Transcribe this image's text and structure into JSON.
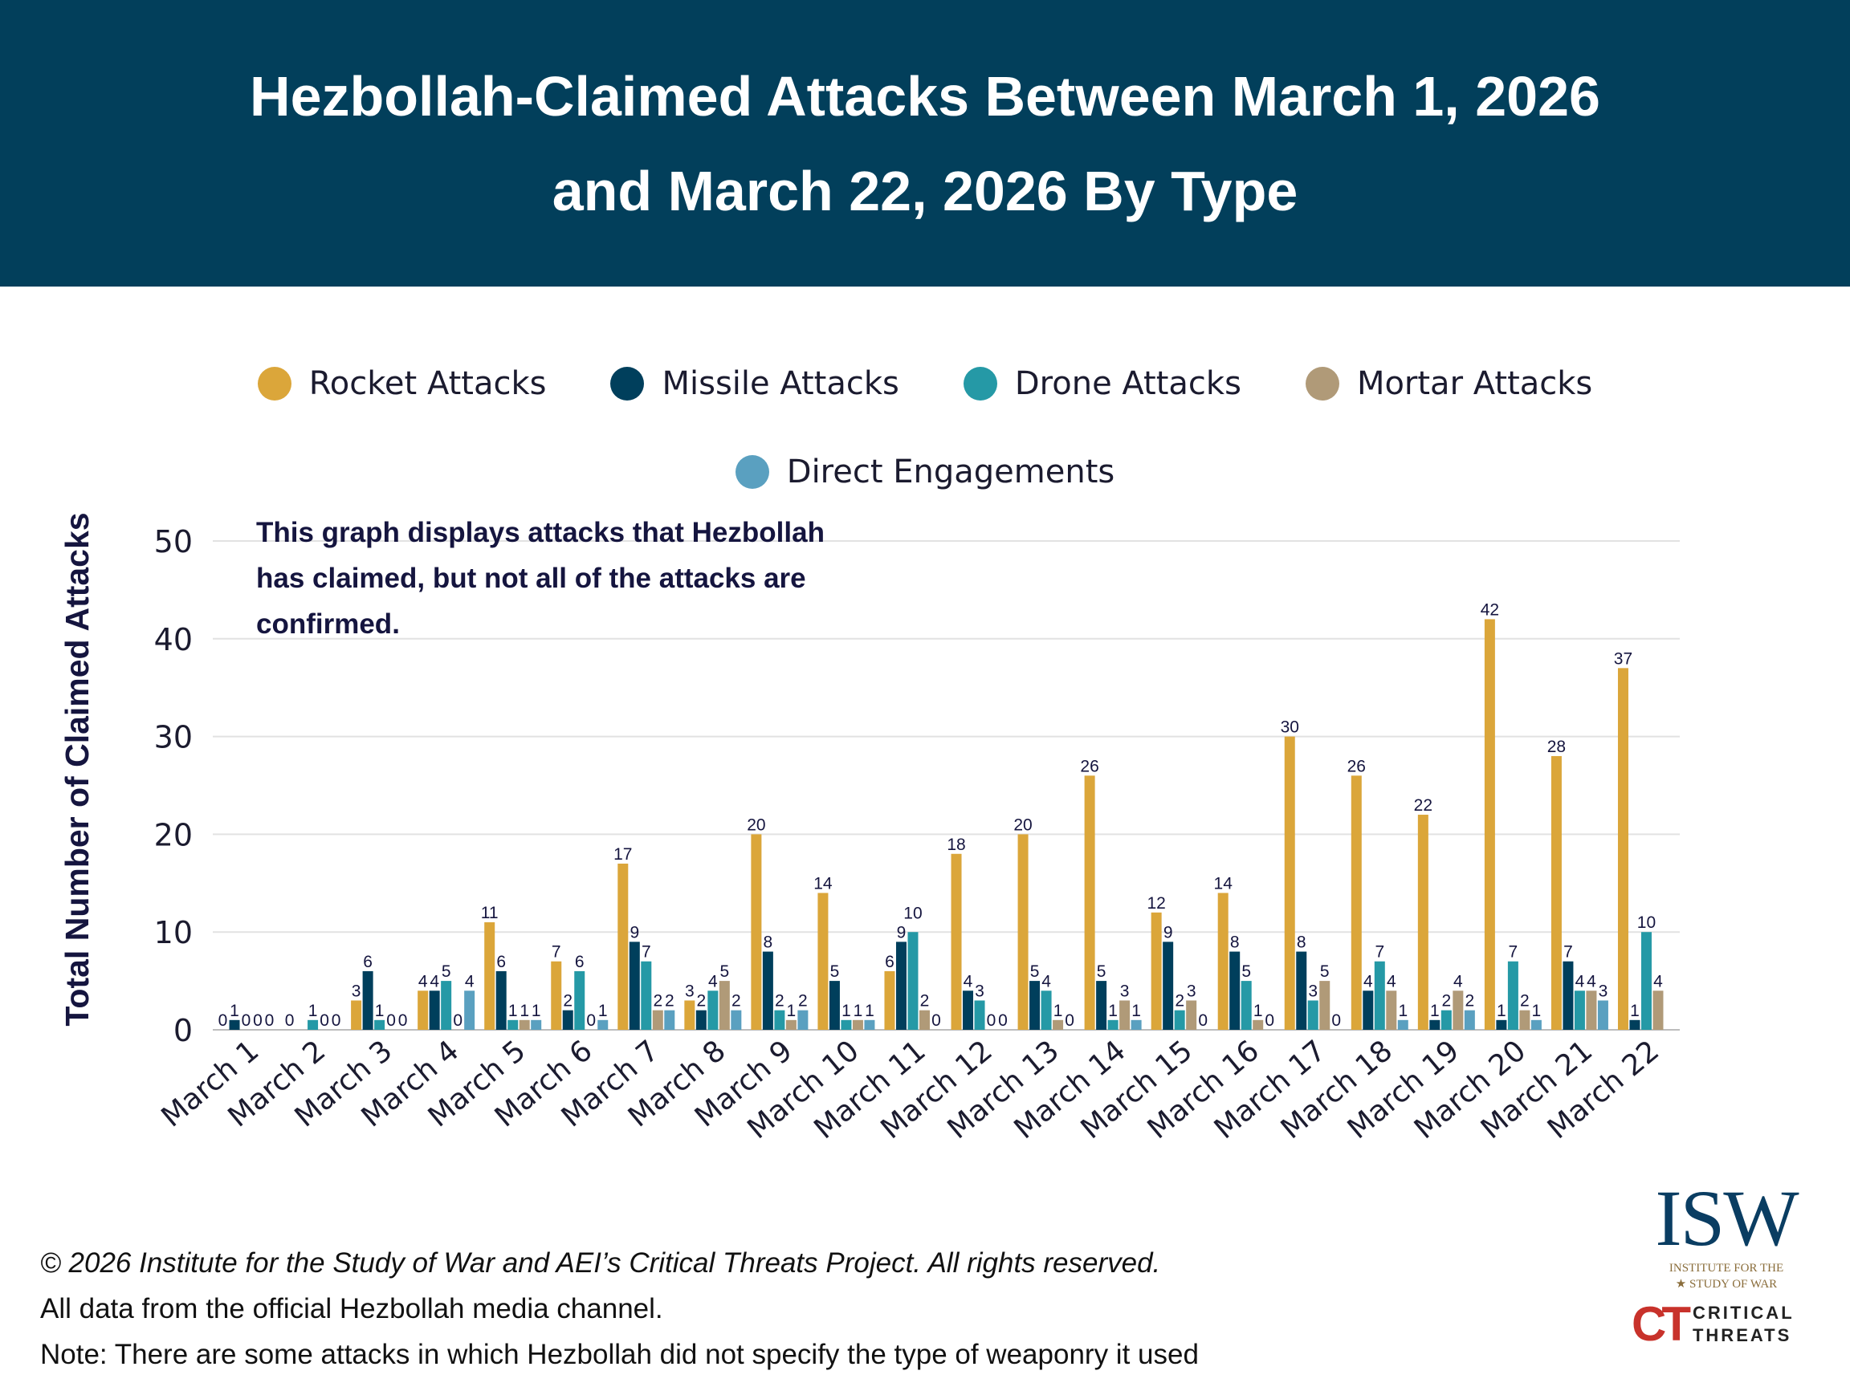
{
  "header": {
    "title_line1": "Hezbollah-Claimed Attacks Between March 1, 2026",
    "title_line2": "and March 22, 2026 By Type"
  },
  "note": "This graph displays attacks that Hezbollah has claimed, but not all of the attacks are confirmed.",
  "footer": {
    "copyright": "© 2026 Institute for the Study of War and AEI’s Critical Threats Project. All rights reserved.",
    "source": "All data from the official Hezbollah media channel.",
    "note": "Note: There are some attacks in which Hezbollah did not specify the type of weaponry it used"
  },
  "logos": {
    "isw": "ISW",
    "isw_sub1": "INSTITUTE FOR THE",
    "isw_sub2": "STUDY OF WAR",
    "ct_mark": "CT",
    "ct_text1": "CRITICAL",
    "ct_text2": "THREATS"
  },
  "chart_data": {
    "type": "bar",
    "title": "Hezbollah-Claimed Attacks Between March 1, 2026 and March 22, 2026 By Type",
    "xlabel": "",
    "ylabel": "Total Number of Claimed Attacks",
    "ylim": [
      0,
      50
    ],
    "yticks": [
      0,
      10,
      20,
      30,
      40,
      50
    ],
    "grid": true,
    "legend_placement": "top",
    "categories": [
      "March 1",
      "March 2",
      "March 3",
      "March 4",
      "March 5",
      "March 6",
      "March 7",
      "March 8",
      "March 9",
      "March 10",
      "March 11",
      "March 12",
      "March 13",
      "March 14",
      "March 15",
      "March 16",
      "March 17",
      "March 18",
      "March 19",
      "March 20",
      "March 21",
      "March 22"
    ],
    "series": [
      {
        "name": "Rocket Attacks",
        "color": "#dba63a",
        "values": [
          0,
          0,
          3,
          4,
          11,
          7,
          17,
          3,
          20,
          14,
          6,
          18,
          20,
          26,
          12,
          14,
          30,
          26,
          22,
          42,
          28,
          37
        ]
      },
      {
        "name": "Missile Attacks",
        "color": "#003f5c",
        "values": [
          1,
          null,
          6,
          4,
          6,
          2,
          9,
          2,
          8,
          5,
          9,
          4,
          5,
          5,
          9,
          8,
          8,
          4,
          1,
          1,
          7,
          1
        ]
      },
      {
        "name": "Drone Attacks",
        "color": "#2599a6",
        "values": [
          0,
          1,
          1,
          5,
          1,
          6,
          7,
          4,
          2,
          1,
          10,
          3,
          4,
          1,
          2,
          5,
          3,
          7,
          2,
          7,
          4,
          10
        ]
      },
      {
        "name": "Mortar Attacks",
        "color": "#b09a78",
        "values": [
          0,
          0,
          0,
          0,
          1,
          0,
          2,
          5,
          1,
          1,
          2,
          0,
          1,
          3,
          3,
          1,
          5,
          4,
          4,
          2,
          4,
          4
        ]
      },
      {
        "name": "Direct Engagements",
        "color": "#5aa0c0",
        "values": [
          0,
          0,
          0,
          4,
          1,
          1,
          2,
          2,
          2,
          1,
          0,
          0,
          0,
          1,
          0,
          0,
          0,
          1,
          2,
          1,
          3,
          null
        ]
      }
    ]
  }
}
